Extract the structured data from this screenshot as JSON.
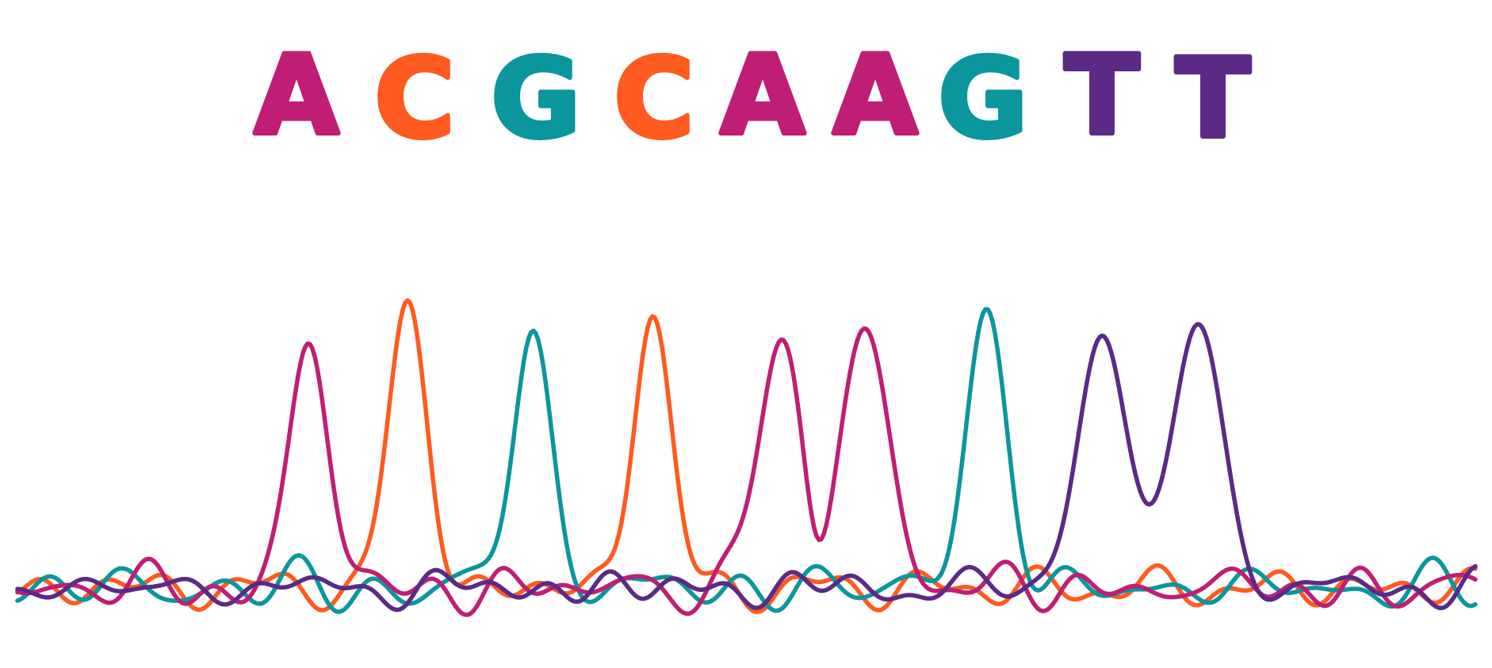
{
  "sequence": {
    "letters": [
      {
        "text": "A",
        "base": "A"
      },
      {
        "text": "C",
        "base": "C"
      },
      {
        "text": "G",
        "base": "G"
      },
      {
        "text": "C",
        "base": "C"
      },
      {
        "text": "A",
        "base": "A"
      },
      {
        "text": "A",
        "base": "A"
      },
      {
        "text": "G",
        "base": "G"
      },
      {
        "text": "T",
        "base": "T"
      },
      {
        "text": "T",
        "base": "T"
      }
    ]
  },
  "colors": {
    "A": "#C01E74",
    "C": "#FF5A1F",
    "G": "#0B969E",
    "T": "#5B2A86"
  },
  "chromatogram": {
    "peaks": [
      {
        "base": "A",
        "level": 0.92
      },
      {
        "base": "C",
        "level": 1.0
      },
      {
        "base": "G",
        "level": 0.95
      },
      {
        "base": "C",
        "level": 1.0
      },
      {
        "base": "A",
        "level": 0.84
      },
      {
        "base": "A",
        "level": 0.9
      },
      {
        "base": "G",
        "level": 0.93
      },
      {
        "base": "T",
        "level": 0.91
      },
      {
        "base": "T",
        "level": 0.96
      }
    ]
  }
}
